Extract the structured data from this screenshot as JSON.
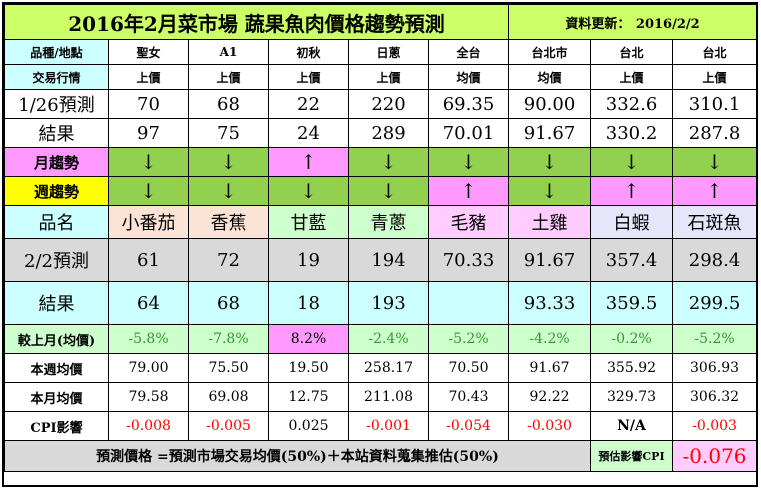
{
  "title": "2016年2月菜市場 蔬果魚肉價格趨勢預測",
  "update_label": "資料更新：",
  "update_date": "2016/2/2",
  "labels": {
    "market": "品種/地點",
    "trade": "交易行情",
    "pred_prev": "1/26預測",
    "result_prev": "結果",
    "monthly": "月趨勢",
    "weekly": "週趨勢",
    "product": "品名",
    "pred_now": "2/2預測",
    "result_now": "結果",
    "vs_last_month": "較上月(均價)",
    "week_avg": "本週均價",
    "month_avg": "本月均價",
    "cpi": "CPI影響"
  },
  "columns": [
    {
      "market": "聖女",
      "trade": "上價",
      "pred_prev": "70",
      "result_prev": "97",
      "monthly": "↓",
      "weekly": "↓",
      "product": "小番茄",
      "pred_now": "61",
      "result_now": "64",
      "vs": "-5.8%",
      "week_avg": "79.00",
      "month_avg": "79.58",
      "cpi": "-0.008"
    },
    {
      "market": "A1",
      "trade": "上價",
      "pred_prev": "68",
      "result_prev": "75",
      "monthly": "↓",
      "weekly": "↓",
      "product": "香蕉",
      "pred_now": "72",
      "result_now": "68",
      "vs": "-7.8%",
      "week_avg": "75.50",
      "month_avg": "69.08",
      "cpi": "-0.005"
    },
    {
      "market": "初秋",
      "trade": "上價",
      "pred_prev": "22",
      "result_prev": "24",
      "monthly": "↑",
      "weekly": "↓",
      "product": "甘藍",
      "pred_now": "19",
      "result_now": "18",
      "vs": "8.2%",
      "week_avg": "19.50",
      "month_avg": "12.75",
      "cpi": "0.025"
    },
    {
      "market": "日蔥",
      "trade": "上價",
      "pred_prev": "220",
      "result_prev": "289",
      "monthly": "↓",
      "weekly": "↓",
      "product": "青蔥",
      "pred_now": "194",
      "result_now": "193",
      "vs": "-2.4%",
      "week_avg": "258.17",
      "month_avg": "211.08",
      "cpi": "-0.001"
    },
    {
      "market": "全台",
      "trade": "均價",
      "pred_prev": "69.35",
      "result_prev": "70.01",
      "monthly": "↓",
      "weekly": "↑",
      "product": "毛豬",
      "pred_now": "70.33",
      "result_now": "",
      "vs": "-5.2%",
      "week_avg": "70.50",
      "month_avg": "70.43",
      "cpi": "-0.054"
    },
    {
      "market": "台北市",
      "trade": "均價",
      "pred_prev": "90.00",
      "result_prev": "91.67",
      "monthly": "↓",
      "weekly": "↓",
      "product": "土雞",
      "pred_now": "91.67",
      "result_now": "93.33",
      "vs": "-4.2%",
      "week_avg": "91.67",
      "month_avg": "92.22",
      "cpi": "-0.030"
    },
    {
      "market": "台北",
      "trade": "上價",
      "pred_prev": "332.6",
      "result_prev": "330.2",
      "monthly": "↓",
      "weekly": "↑",
      "product": "白蝦",
      "pred_now": "357.4",
      "result_now": "359.5",
      "vs": "-0.2%",
      "week_avg": "355.92",
      "month_avg": "329.73",
      "cpi": "N/A"
    },
    {
      "market": "台北",
      "trade": "上價",
      "pred_prev": "310.1",
      "result_prev": "287.8",
      "monthly": "↓",
      "weekly": "↑",
      "product": "石斑魚",
      "pred_now": "298.4",
      "result_now": "299.5",
      "vs": "-5.2%",
      "week_avg": "306.93",
      "month_avg": "306.32",
      "cpi": "-0.003"
    }
  ],
  "footer": {
    "formula": "預測價格 =預測市場交易均價(50%)＋本站資料蒐集推估(50%)",
    "cpi_label": "預估影響CPI",
    "cpi_value": "-0.076"
  },
  "colors": {
    "title_bg": "#ccff66",
    "trend_down": "#92d050",
    "trend_up": "#ff99ff",
    "negative": "#ff0000"
  }
}
